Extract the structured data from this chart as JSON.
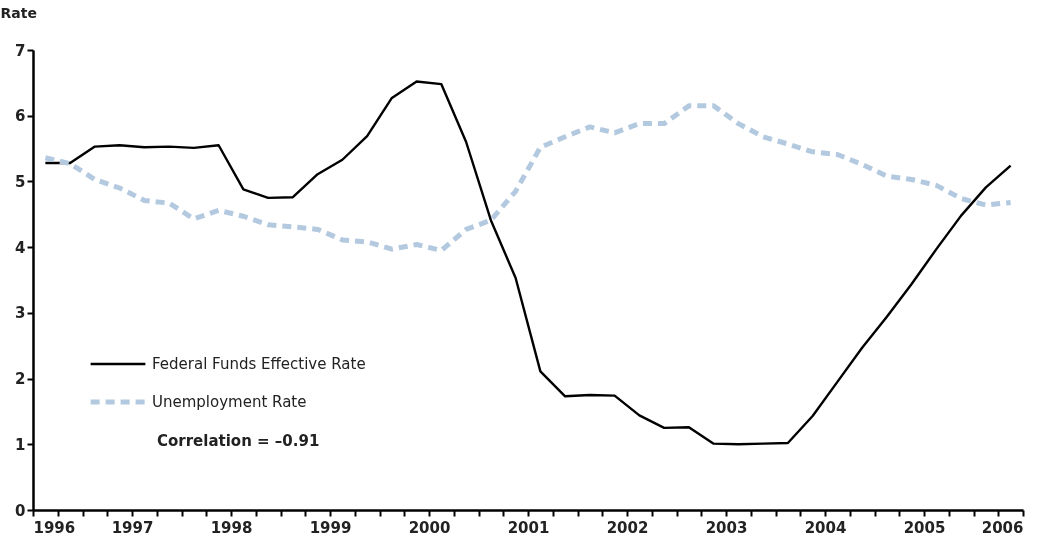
{
  "chart_data": {
    "type": "line",
    "ylabel": "Rate",
    "x": [
      1996.125,
      1996.375,
      1996.625,
      1996.875,
      1997.125,
      1997.375,
      1997.625,
      1997.875,
      1998.125,
      1998.375,
      1998.625,
      1998.875,
      1999.125,
      1999.375,
      1999.625,
      1999.875,
      2000.125,
      2000.375,
      2000.625,
      2000.875,
      2001.125,
      2001.375,
      2001.625,
      2001.875,
      2002.125,
      2002.375,
      2002.625,
      2002.875,
      2003.125,
      2003.375,
      2003.625,
      2003.875,
      2004.125,
      2004.375,
      2004.625,
      2004.875,
      2005.125,
      2005.375,
      2005.625,
      2005.875
    ],
    "series": [
      {
        "name": "Federal Funds Effective Rate",
        "color": "#000000",
        "line_style": "solid",
        "values": [
          5.28,
          5.28,
          5.53,
          5.55,
          5.52,
          5.53,
          5.51,
          5.55,
          4.88,
          4.75,
          4.76,
          5.11,
          5.33,
          5.69,
          6.27,
          6.52,
          6.48,
          5.6,
          4.41,
          3.53,
          2.11,
          1.73,
          1.75,
          1.74,
          1.44,
          1.25,
          1.26,
          1.01,
          1.0,
          1.01,
          1.02,
          1.43,
          1.95,
          2.47,
          2.94,
          3.44,
          3.97,
          4.48,
          4.91,
          5.24
        ]
      },
      {
        "name": "Unemployment Rate",
        "color": "#b3c9df",
        "line_style": "dashed",
        "values": [
          5.36,
          5.27,
          5.03,
          4.9,
          4.71,
          4.67,
          4.43,
          4.56,
          4.47,
          4.34,
          4.31,
          4.27,
          4.11,
          4.08,
          3.97,
          4.04,
          3.95,
          4.27,
          4.41,
          4.85,
          5.52,
          5.68,
          5.83,
          5.74,
          5.88,
          5.88,
          6.15,
          6.15,
          5.88,
          5.68,
          5.57,
          5.45,
          5.41,
          5.26,
          5.08,
          5.03,
          4.94,
          4.74,
          4.64,
          4.68
        ]
      }
    ],
    "xlim": [
      1996,
      2006
    ],
    "xticks": [
      1996,
      {
        "value": 1996.25,
        "label": null
      },
      {
        "value": 1996.5,
        "label": null
      },
      {
        "value": 1996.75,
        "label": null
      },
      1997,
      {
        "value": 1997.25,
        "label": null
      },
      {
        "value": 1997.5,
        "label": null
      },
      {
        "value": 1997.75,
        "label": null
      },
      1998,
      {
        "value": 1998.25,
        "label": null
      },
      {
        "value": 1998.5,
        "label": null
      },
      {
        "value": 1998.75,
        "label": null
      },
      1999,
      {
        "value": 1999.25,
        "label": null
      },
      {
        "value": 1999.5,
        "label": null
      },
      {
        "value": 1999.75,
        "label": null
      },
      2000,
      {
        "value": 2000.25,
        "label": null
      },
      {
        "value": 2000.5,
        "label": null
      },
      {
        "value": 2000.75,
        "label": null
      },
      2001,
      {
        "value": 2001.25,
        "label": null
      },
      {
        "value": 2001.5,
        "label": null
      },
      {
        "value": 2001.75,
        "label": null
      },
      2002,
      {
        "value": 2002.25,
        "label": null
      },
      {
        "value": 2002.5,
        "label": null
      },
      {
        "value": 2002.75,
        "label": null
      },
      2003,
      {
        "value": 2003.25,
        "label": null
      },
      {
        "value": 2003.5,
        "label": null
      },
      {
        "value": 2003.75,
        "label": null
      },
      2004,
      {
        "value": 2004.25,
        "label": null
      },
      {
        "value": 2004.5,
        "label": null
      },
      {
        "value": 2004.75,
        "label": null
      },
      2005,
      {
        "value": 2005.25,
        "label": null
      },
      {
        "value": 2005.5,
        "label": null
      },
      {
        "value": 2005.75,
        "label": null
      },
      2006
    ],
    "ylim": [
      0,
      7
    ],
    "yticks": [
      0,
      1,
      2,
      3,
      4,
      5,
      6,
      7
    ],
    "grid": false,
    "legend": "left",
    "marker": "none",
    "annotations": [
      "Correlation = –0.91"
    ]
  }
}
